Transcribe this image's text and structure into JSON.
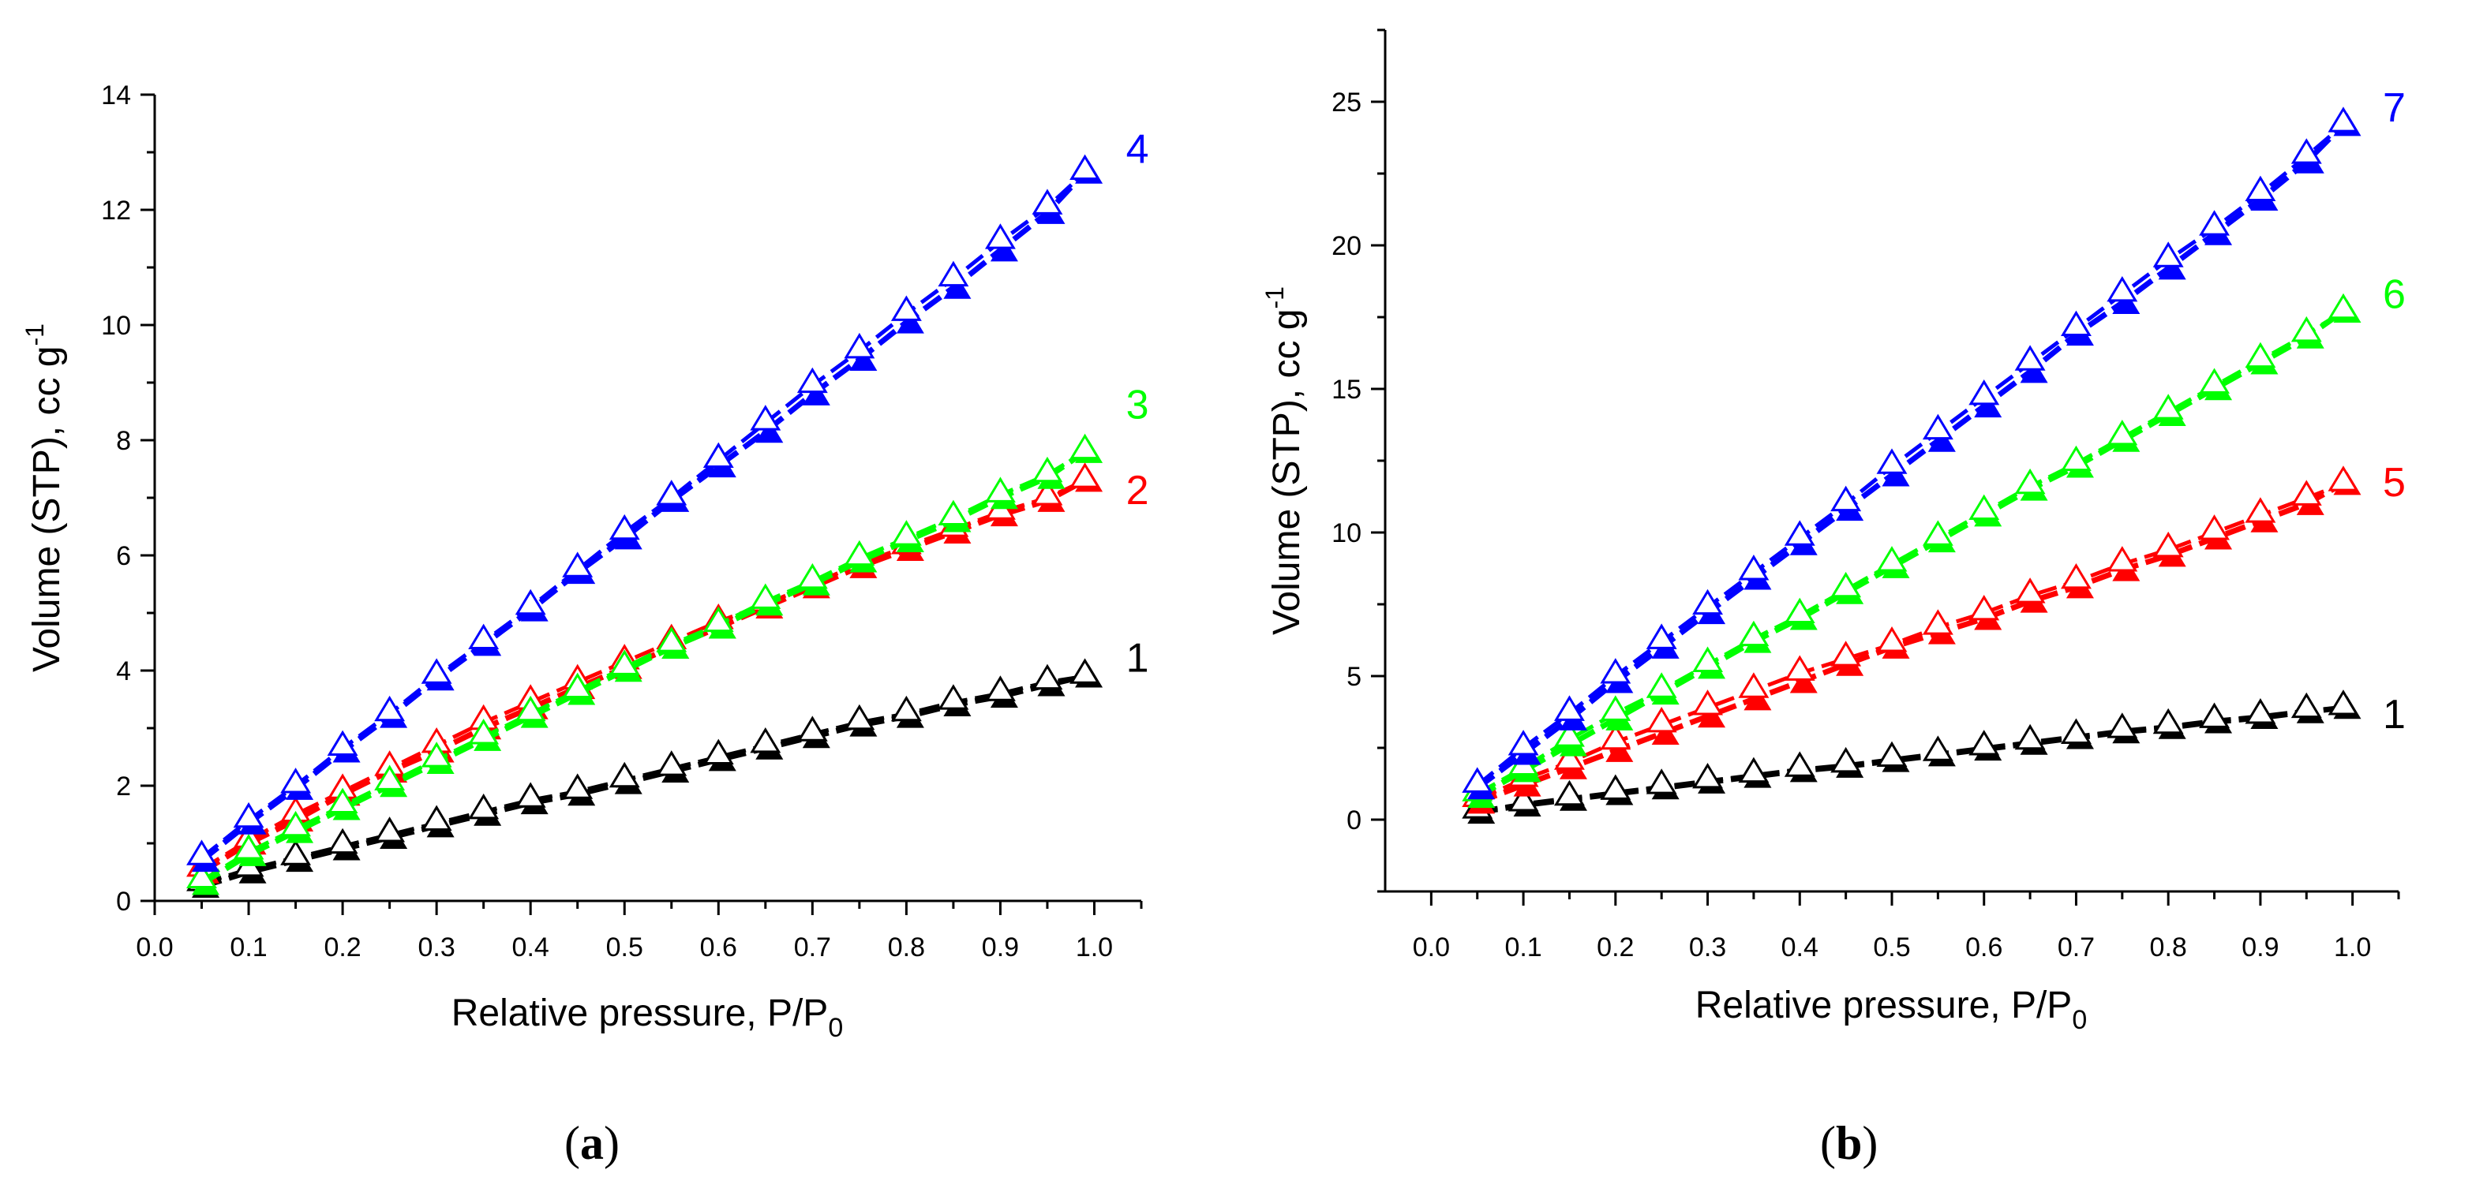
{
  "chart_data": [
    {
      "type": "line",
      "panel_label": "a",
      "xlabel": "Relative pressure, P/P",
      "xlabel_sub": "0",
      "ylabel": "Volume (STP), cc g",
      "ylabel_sup": "-1",
      "xlim": [
        0,
        1.05
      ],
      "ylim": [
        0,
        14
      ],
      "xticks": [
        "0.0",
        "0.1",
        "0.2",
        "0.3",
        "0.4",
        "0.5",
        "0.6",
        "0.7",
        "0.8",
        "0.9",
        "1.0"
      ],
      "yticks": [
        "0",
        "2",
        "4",
        "6",
        "8",
        "10",
        "12",
        "14"
      ],
      "series": [
        {
          "name": "1",
          "color": "#000000",
          "x": [
            0.05,
            0.1,
            0.15,
            0.2,
            0.25,
            0.3,
            0.35,
            0.4,
            0.45,
            0.5,
            0.55,
            0.6,
            0.65,
            0.7,
            0.75,
            0.8,
            0.85,
            0.9,
            0.95,
            0.99
          ],
          "adsorption": [
            0.25,
            0.5,
            0.7,
            0.9,
            1.1,
            1.3,
            1.5,
            1.7,
            1.85,
            2.05,
            2.25,
            2.45,
            2.65,
            2.85,
            3.05,
            3.2,
            3.4,
            3.55,
            3.75,
            3.9
          ],
          "desorption": [
            0.3,
            0.55,
            0.75,
            0.95,
            1.15,
            1.35,
            1.55,
            1.75,
            1.9,
            2.1,
            2.3,
            2.5,
            2.7,
            2.9,
            3.1,
            3.25,
            3.45,
            3.6,
            3.8,
            3.9
          ]
        },
        {
          "name": "2",
          "color": "#ff0000",
          "x": [
            0.05,
            0.1,
            0.15,
            0.2,
            0.25,
            0.3,
            0.35,
            0.4,
            0.45,
            0.5,
            0.55,
            0.6,
            0.65,
            0.7,
            0.75,
            0.8,
            0.85,
            0.9,
            0.95,
            0.99
          ],
          "adsorption": [
            0.5,
            1.0,
            1.4,
            1.85,
            2.25,
            2.6,
            3.0,
            3.35,
            3.7,
            4.05,
            4.4,
            4.75,
            5.1,
            5.45,
            5.8,
            6.1,
            6.4,
            6.7,
            6.95,
            7.3
          ],
          "desorption": [
            0.55,
            1.05,
            1.5,
            1.9,
            2.3,
            2.7,
            3.1,
            3.45,
            3.8,
            4.15,
            4.5,
            4.85,
            5.15,
            5.5,
            5.85,
            6.15,
            6.45,
            6.75,
            7.0,
            7.3
          ]
        },
        {
          "name": "3",
          "color": "#00ff00",
          "x": [
            0.05,
            0.1,
            0.15,
            0.2,
            0.25,
            0.3,
            0.35,
            0.4,
            0.45,
            0.5,
            0.55,
            0.6,
            0.65,
            0.7,
            0.75,
            0.8,
            0.85,
            0.9,
            0.95,
            0.99
          ],
          "adsorption": [
            0.3,
            0.8,
            1.2,
            1.6,
            2.0,
            2.4,
            2.8,
            3.2,
            3.6,
            4.0,
            4.4,
            4.75,
            5.15,
            5.5,
            5.9,
            6.25,
            6.6,
            7.0,
            7.35,
            7.8
          ],
          "desorption": [
            0.35,
            0.85,
            1.25,
            1.65,
            2.05,
            2.45,
            2.85,
            3.25,
            3.65,
            4.05,
            4.45,
            4.8,
            5.2,
            5.55,
            5.95,
            6.3,
            6.65,
            7.05,
            7.4,
            7.8
          ]
        },
        {
          "name": "4",
          "color": "#0000ff",
          "x": [
            0.05,
            0.1,
            0.15,
            0.2,
            0.25,
            0.3,
            0.35,
            0.4,
            0.45,
            0.5,
            0.55,
            0.6,
            0.65,
            0.7,
            0.75,
            0.8,
            0.85,
            0.9,
            0.95,
            0.99
          ],
          "adsorption": [
            0.7,
            1.35,
            1.95,
            2.6,
            3.2,
            3.85,
            4.45,
            5.05,
            5.7,
            6.3,
            6.95,
            7.55,
            8.15,
            8.8,
            9.4,
            10.05,
            10.65,
            11.3,
            11.95,
            12.65
          ],
          "desorption": [
            0.75,
            1.4,
            2.0,
            2.65,
            3.25,
            3.9,
            4.5,
            5.1,
            5.75,
            6.4,
            7.0,
            7.65,
            8.3,
            8.95,
            9.55,
            10.2,
            10.8,
            11.45,
            12.05,
            12.65
          ]
        }
      ]
    },
    {
      "type": "line",
      "panel_label": "b",
      "xlabel": "Relative pressure, P/P",
      "xlabel_sub": "0",
      "ylabel": "Volume (STP), cc g",
      "ylabel_sup": "-1",
      "xlim": [
        -0.05,
        1.05
      ],
      "ylim": [
        -2.5,
        27.5
      ],
      "xticks": [
        "0.0",
        "0.1",
        "0.2",
        "0.3",
        "0.4",
        "0.5",
        "0.6",
        "0.7",
        "0.8",
        "0.9",
        "1.0"
      ],
      "yticks": [
        "0",
        "5",
        "10",
        "15",
        "20",
        "25"
      ],
      "series": [
        {
          "name": "1",
          "color": "#000000",
          "x": [
            0.05,
            0.1,
            0.15,
            0.2,
            0.25,
            0.3,
            0.35,
            0.4,
            0.45,
            0.5,
            0.55,
            0.6,
            0.65,
            0.7,
            0.75,
            0.8,
            0.85,
            0.9,
            0.95,
            0.99
          ],
          "adsorption": [
            0.25,
            0.5,
            0.7,
            0.9,
            1.1,
            1.3,
            1.5,
            1.7,
            1.85,
            2.05,
            2.25,
            2.45,
            2.65,
            2.85,
            3.05,
            3.2,
            3.4,
            3.55,
            3.75,
            3.9
          ],
          "desorption": [
            0.3,
            0.55,
            0.75,
            0.95,
            1.15,
            1.35,
            1.55,
            1.75,
            1.9,
            2.1,
            2.3,
            2.5,
            2.7,
            2.9,
            3.1,
            3.25,
            3.45,
            3.6,
            3.8,
            3.9
          ]
        },
        {
          "name": "5",
          "color": "#ff0000",
          "x": [
            0.05,
            0.1,
            0.15,
            0.2,
            0.25,
            0.3,
            0.35,
            0.4,
            0.45,
            0.5,
            0.55,
            0.6,
            0.65,
            0.7,
            0.75,
            0.8,
            0.85,
            0.9,
            0.95,
            0.99
          ],
          "adsorption": [
            0.6,
            1.2,
            1.8,
            2.4,
            3.0,
            3.6,
            4.2,
            4.8,
            5.4,
            6.0,
            6.5,
            7.0,
            7.6,
            8.1,
            8.7,
            9.2,
            9.8,
            10.4,
            11.0,
            11.7
          ],
          "desorption": [
            0.7,
            1.4,
            2.0,
            2.7,
            3.3,
            3.9,
            4.5,
            5.1,
            5.6,
            6.1,
            6.7,
            7.2,
            7.8,
            8.3,
            8.9,
            9.4,
            10.0,
            10.6,
            11.2,
            11.7
          ]
        },
        {
          "name": "6",
          "color": "#00ff00",
          "x": [
            0.05,
            0.1,
            0.15,
            0.2,
            0.25,
            0.3,
            0.35,
            0.4,
            0.45,
            0.5,
            0.55,
            0.6,
            0.65,
            0.7,
            0.75,
            0.8,
            0.85,
            0.9,
            0.95,
            0.99
          ],
          "adsorption": [
            0.8,
            1.7,
            2.6,
            3.5,
            4.4,
            5.3,
            6.2,
            7.0,
            7.9,
            8.8,
            9.7,
            10.6,
            11.5,
            12.3,
            13.2,
            14.1,
            15.0,
            15.9,
            16.8,
            17.7
          ],
          "desorption": [
            0.9,
            1.8,
            2.8,
            3.7,
            4.5,
            5.4,
            6.3,
            7.1,
            8.0,
            8.9,
            9.8,
            10.7,
            11.6,
            12.4,
            13.3,
            14.2,
            15.1,
            16.0,
            16.9,
            17.7
          ]
        },
        {
          "name": "7",
          "color": "#0000ff",
          "x": [
            0.05,
            0.1,
            0.15,
            0.2,
            0.25,
            0.3,
            0.35,
            0.4,
            0.45,
            0.5,
            0.55,
            0.6,
            0.65,
            0.7,
            0.75,
            0.8,
            0.85,
            0.9,
            0.95,
            0.99
          ],
          "adsorption": [
            1.1,
            2.3,
            3.5,
            4.8,
            6.0,
            7.2,
            8.4,
            9.6,
            10.8,
            12.0,
            13.2,
            14.4,
            15.6,
            16.9,
            18.0,
            19.2,
            20.4,
            21.6,
            22.9,
            24.2
          ],
          "desorption": [
            1.2,
            2.5,
            3.7,
            5.0,
            6.2,
            7.4,
            8.6,
            9.8,
            11.0,
            12.3,
            13.5,
            14.7,
            15.9,
            17.1,
            18.3,
            19.5,
            20.6,
            21.8,
            23.1,
            24.2
          ]
        }
      ]
    }
  ]
}
